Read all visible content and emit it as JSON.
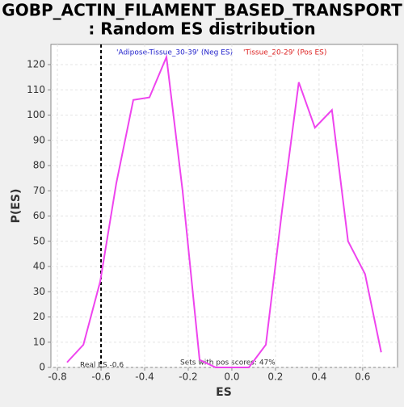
{
  "chart_data": {
    "type": "line",
    "title": [
      "GOBP_ACTIN_FILAMENT_BASED_TRANSPORT",
      ": Random ES distribution"
    ],
    "x_label": "ES",
    "y_label": "P(ES)",
    "legend_neg": {
      "text": "'Adipose-Tissue_30-39' (Neg ES)",
      "color": "#2222cc"
    },
    "legend_pos": {
      "text": "'Tissue_20-29' (Pos ES)",
      "color": "#dd2222"
    },
    "real_es": {
      "value": -0.6,
      "label": "Real ES -0.6"
    },
    "pos_note": "Sets with pos scores: 47%",
    "grid": true,
    "xlim": [
      -0.83,
      0.76
    ],
    "ylim": [
      0,
      128
    ],
    "xticks": [
      -0.8,
      -0.6,
      -0.4,
      -0.2,
      {
        "value": 0,
        "label": "0.0"
      },
      0.2,
      0.4,
      0.6
    ],
    "yticks": [
      0,
      10,
      20,
      30,
      40,
      50,
      60,
      70,
      80,
      90,
      100,
      110,
      120
    ],
    "series": [
      {
        "color": "#ee44ee",
        "x": [
          -0.756,
          -0.681,
          -0.604,
          -0.53,
          -0.452,
          -0.378,
          -0.3,
          -0.226,
          -0.148,
          -0.074,
          0.004,
          0.078,
          0.156,
          0.23,
          0.307,
          0.381,
          0.459,
          0.533,
          0.611,
          0.685
        ],
        "values": [
          2,
          9,
          34,
          73,
          106,
          107,
          123,
          70,
          3,
          0,
          0,
          0,
          9,
          62,
          113,
          95,
          102,
          50,
          37,
          6
        ]
      }
    ]
  }
}
